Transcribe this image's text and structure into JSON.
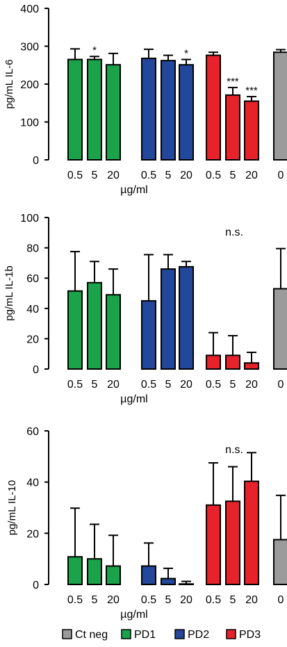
{
  "chart_data": [
    {
      "type": "bar",
      "ylabel": "pg/mL IL-6",
      "xlabel": "µg/ml",
      "ylim": [
        0,
        400
      ],
      "yticks": [
        0,
        100,
        200,
        300,
        400
      ],
      "categories": [
        "0.5",
        "5",
        "20",
        "0.5",
        "5",
        "20",
        "0.5",
        "5",
        "20",
        "0"
      ],
      "groups": [
        "PD1",
        "PD1",
        "PD1",
        "PD2",
        "PD2",
        "PD2",
        "PD3",
        "PD3",
        "PD3",
        "Ct neg"
      ],
      "values": [
        265,
        265,
        251,
        268,
        262,
        251,
        276,
        171,
        155,
        284
      ],
      "errors": [
        28,
        8,
        30,
        24,
        14,
        14,
        8,
        20,
        12,
        7
      ],
      "annotations": [
        "",
        "*",
        "",
        "",
        "",
        "*",
        "",
        "***",
        "***",
        ""
      ],
      "note": ""
    },
    {
      "type": "bar",
      "ylabel": "pg/mL IL-1b",
      "xlabel": "µg/ml",
      "ylim": [
        0,
        100
      ],
      "yticks": [
        0,
        20,
        40,
        60,
        80,
        100
      ],
      "categories": [
        "0.5",
        "5",
        "20",
        "0.5",
        "5",
        "20",
        "0.5",
        "5",
        "20",
        "0"
      ],
      "groups": [
        "PD1",
        "PD1",
        "PD1",
        "PD2",
        "PD2",
        "PD2",
        "PD3",
        "PD3",
        "PD3",
        "Ct neg"
      ],
      "values": [
        51.5,
        57,
        49,
        45,
        66,
        67.5,
        9,
        9,
        4,
        53
      ],
      "errors": [
        26,
        14,
        17,
        30.5,
        9.5,
        3.5,
        15,
        13,
        7,
        26.5
      ],
      "annotations": [
        "",
        "",
        "",
        "",
        "",
        "",
        "",
        "",
        "",
        ""
      ],
      "note": "n.s."
    },
    {
      "type": "bar",
      "ylabel": "pg/mL IL-10",
      "xlabel": "µg/ml",
      "ylim": [
        0,
        60
      ],
      "yticks": [
        0,
        20,
        40,
        60
      ],
      "categories": [
        "0.5",
        "5",
        "20",
        "0.5",
        "5",
        "20",
        "0.5",
        "5",
        "20",
        "0"
      ],
      "groups": [
        "PD1",
        "PD1",
        "PD1",
        "PD2",
        "PD2",
        "PD2",
        "PD3",
        "PD3",
        "PD3",
        "Ct neg"
      ],
      "values": [
        10.8,
        10,
        7.2,
        7.2,
        2.3,
        0.2,
        31,
        32.5,
        40.3,
        17.5
      ],
      "errors": [
        19,
        13.5,
        12,
        9,
        4,
        1,
        16.5,
        13.5,
        11.2,
        17.3
      ],
      "annotations": [
        "",
        "",
        "",
        "",
        "",
        "",
        "",
        "",
        "",
        ""
      ],
      "note": "n.s."
    }
  ],
  "colors": {
    "PD1": "#1aa34a",
    "PD2": "#23479b",
    "PD3": "#e8222a",
    "Ct neg": "#9b9b9b"
  },
  "legend": [
    {
      "key": "Ct neg",
      "label": "Ct neg"
    },
    {
      "key": "PD1",
      "label": "PD1"
    },
    {
      "key": "PD2",
      "label": "PD2"
    },
    {
      "key": "PD3",
      "label": "PD3"
    }
  ]
}
